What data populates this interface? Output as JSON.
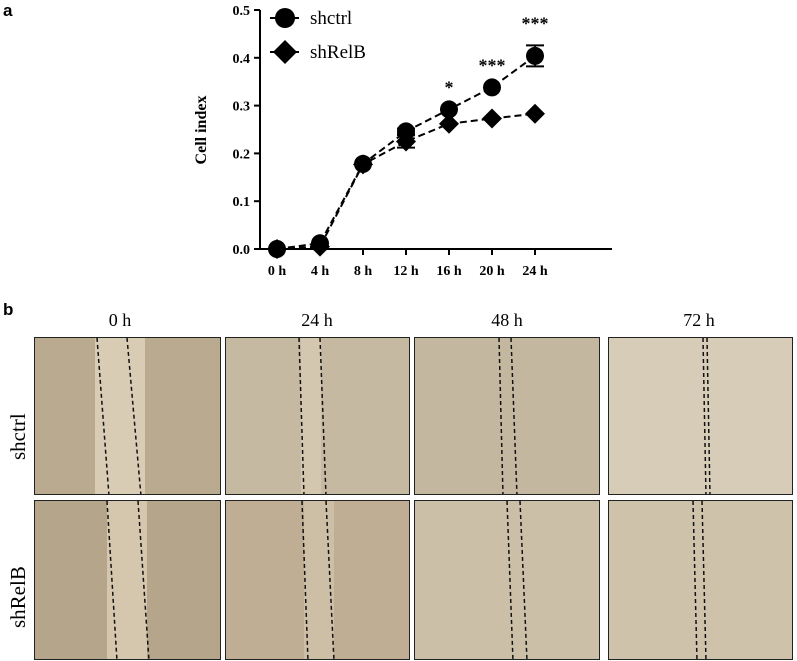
{
  "panels": {
    "a": "a",
    "b": "b"
  },
  "chart_data": {
    "type": "line",
    "ylabel": "Cell index",
    "xlabel": "",
    "categories": [
      "0 h",
      "4 h",
      "8 h",
      "12 h",
      "16 h",
      "20 h",
      "24 h"
    ],
    "ylim": [
      0.0,
      0.5
    ],
    "yticks": [
      "0.0",
      "0.1",
      "0.2",
      "0.3",
      "0.4",
      "0.5"
    ],
    "series": [
      {
        "name": "shctrl",
        "marker": "circle",
        "values": [
          0.0,
          0.012,
          0.178,
          0.246,
          0.292,
          0.338,
          0.404
        ],
        "errors": [
          0,
          0,
          0,
          0.006,
          0,
          0,
          0.022
        ]
      },
      {
        "name": "shRelB",
        "marker": "diamond",
        "values": [
          0.0,
          0.005,
          0.177,
          0.225,
          0.262,
          0.273,
          0.283
        ],
        "errors": [
          0,
          0,
          0,
          0.013,
          0,
          0,
          0
        ]
      }
    ],
    "significance": [
      {
        "category": "16 h",
        "label": "*"
      },
      {
        "category": "20 h",
        "label": "***"
      },
      {
        "category": "24 h",
        "label": "***"
      }
    ],
    "legend_position": "top-left",
    "grid": false
  },
  "wound_assay": {
    "columns": [
      "0 h",
      "24 h",
      "48 h",
      "72 h"
    ],
    "rows": [
      "shctrl",
      "shRelB"
    ]
  }
}
